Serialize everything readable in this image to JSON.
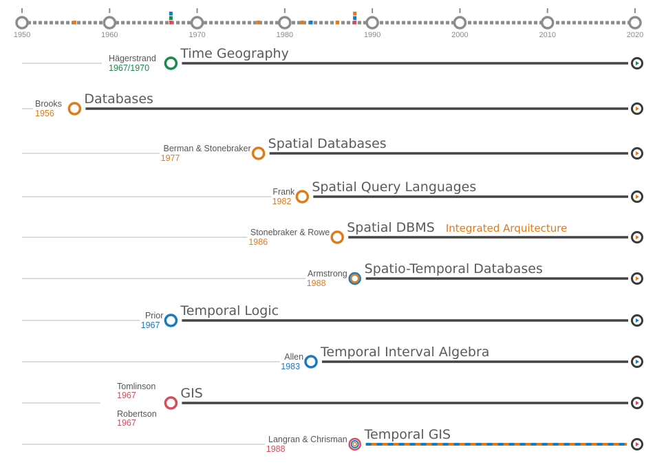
{
  "timeline": {
    "ticks": [
      "1950",
      "1960",
      "1970",
      "1980",
      "1990",
      "2000",
      "2010",
      "2020"
    ],
    "tick_years": [
      1950,
      1960,
      1970,
      1980,
      1990,
      2000,
      2010,
      2020
    ],
    "markers": [
      {
        "year": 1956,
        "color": "#e07b1a"
      },
      {
        "year": 1967,
        "color": "#d94a5a"
      },
      {
        "year": 1967,
        "color": "#1a8a4a"
      },
      {
        "year": 1967,
        "color": "#1a7ac0"
      },
      {
        "year": 1977,
        "color": "#e07b1a"
      },
      {
        "year": 1982,
        "color": "#e07b1a"
      },
      {
        "year": 1983,
        "color": "#1a7ac0"
      },
      {
        "year": 1986,
        "color": "#e07b1a"
      },
      {
        "year": 1988,
        "color": "#d94a5a"
      },
      {
        "year": 1988,
        "color": "#1a7ac0"
      },
      {
        "year": 1988,
        "color": "#e07b1a"
      }
    ]
  },
  "colors": {
    "geography": "#1a8a4a",
    "database": "#e07b1a",
    "temporal": "#1a7ac0",
    "gis": "#d94a5a",
    "line": "#444444",
    "grey": "#8a8a8a"
  },
  "rows": [
    {
      "id": "time-geography",
      "title": "Time Geography",
      "authors": [
        "Hägerstrand"
      ],
      "years": [
        "1967/1970"
      ],
      "year": 1967,
      "color": "#1a8a4a",
      "ring": "single"
    },
    {
      "id": "databases",
      "title": "Databases",
      "authors": [
        "Brooks"
      ],
      "years": [
        "1956"
      ],
      "year": 1956,
      "color": "#e07b1a",
      "ring": "single"
    },
    {
      "id": "spatial-databases",
      "title": "Spatial Databases",
      "authors": [
        "Berman & Stonebraker"
      ],
      "years": [
        "1977"
      ],
      "year": 1977,
      "color": "#e07b1a",
      "ring": "single"
    },
    {
      "id": "spatial-query-languages",
      "title": "Spatial Query Languages",
      "authors": [
        "Frank"
      ],
      "years": [
        "1982"
      ],
      "year": 1982,
      "color": "#e07b1a",
      "ring": "single"
    },
    {
      "id": "spatial-dbms",
      "title": "Spatial DBMS",
      "subtitle": "Integrated Arquitecture",
      "authors": [
        "Stonebraker & Rowe"
      ],
      "years": [
        "1986"
      ],
      "year": 1986,
      "color": "#e07b1a",
      "ring": "single"
    },
    {
      "id": "spatio-temporal-databases",
      "title": "Spatio-Temporal Databases",
      "authors": [
        "Armstrong"
      ],
      "years": [
        "1988"
      ],
      "year": 1988,
      "color": "#e07b1a",
      "ring": "double"
    },
    {
      "id": "temporal-logic",
      "title": "Temporal Logic",
      "authors": [
        "Prior"
      ],
      "years": [
        "1967"
      ],
      "year": 1967,
      "color": "#1a7ac0",
      "ring": "single"
    },
    {
      "id": "temporal-interval-algebra",
      "title": "Temporal Interval Algebra",
      "authors": [
        "Allen"
      ],
      "years": [
        "1983"
      ],
      "year": 1983,
      "color": "#1a7ac0",
      "ring": "single"
    },
    {
      "id": "gis",
      "title": "GIS",
      "authors": [
        "Tomlinson",
        "Robertson"
      ],
      "years": [
        "1967",
        "1967"
      ],
      "year": 1967,
      "color": "#d94a5a",
      "ring": "single"
    },
    {
      "id": "temporal-gis",
      "title": "Temporal GIS",
      "authors": [
        "Langran & Chrisman"
      ],
      "years": [
        "1988"
      ],
      "year": 1988,
      "color": "#d94a5a",
      "ring": "multi"
    }
  ]
}
